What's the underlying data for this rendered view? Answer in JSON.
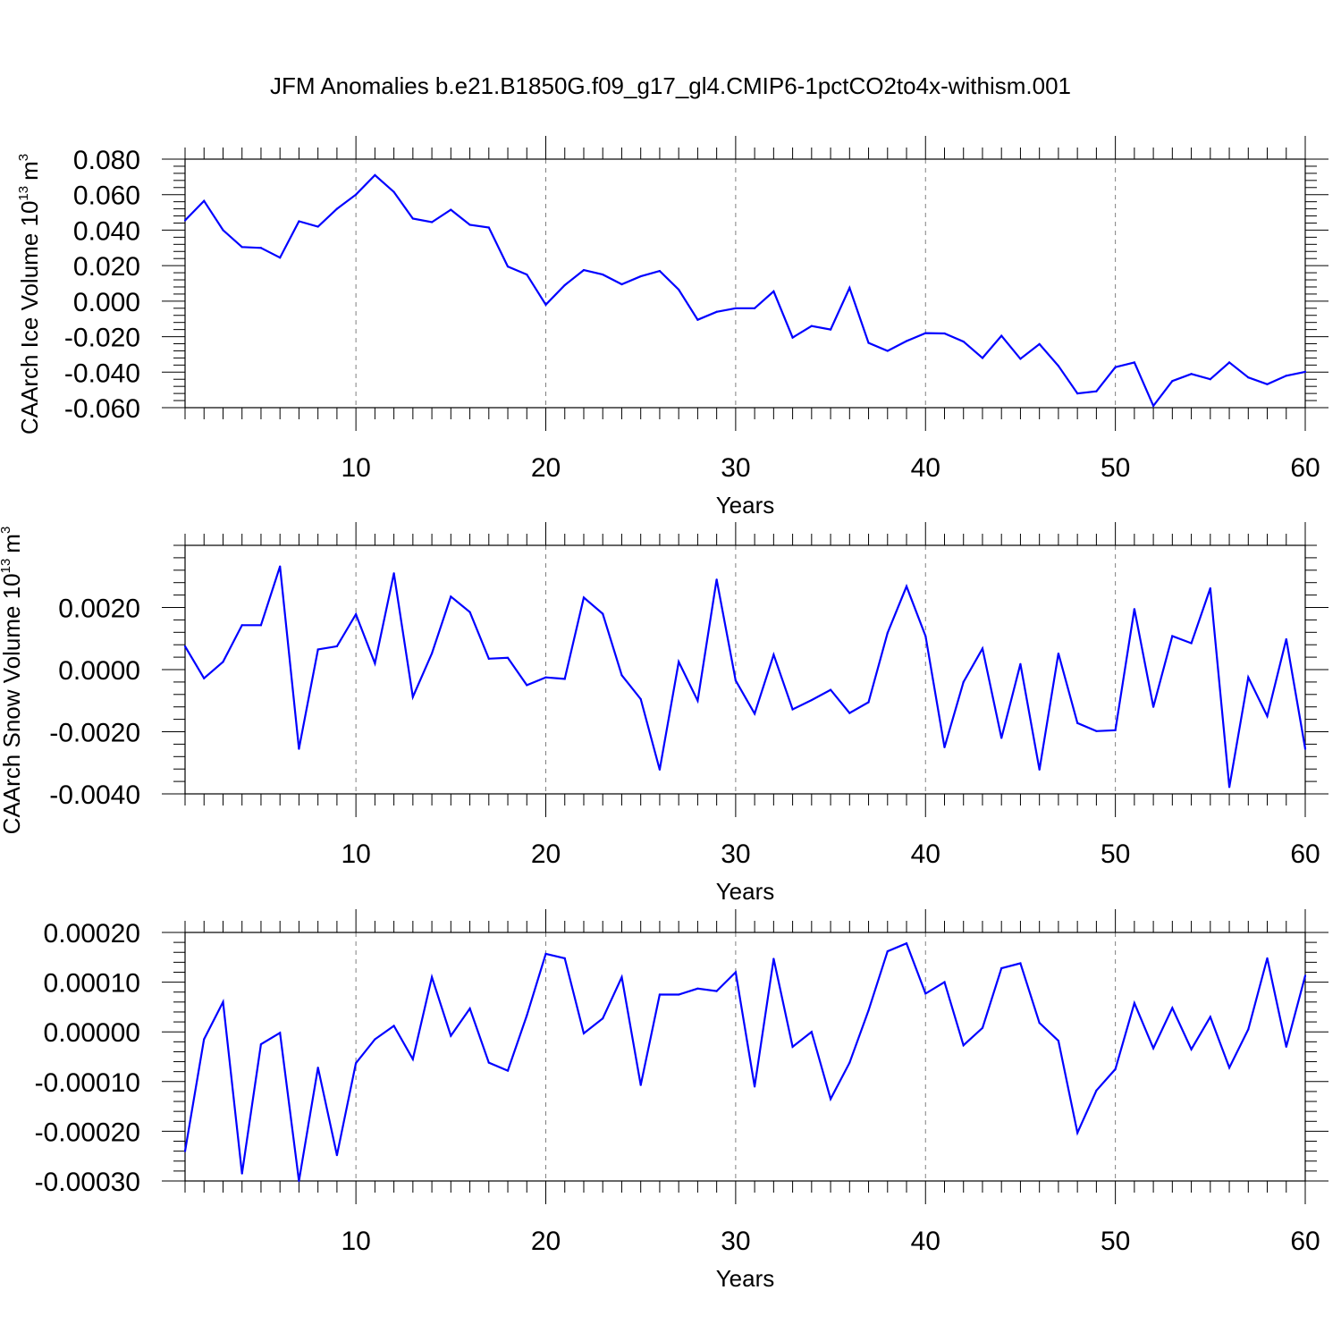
{
  "title": "JFM Anomalies b.e21.B1850G.f09_g17_gl4.CMIP6-1pctCO2to4x-withism.001",
  "colors": {
    "line": "#0000ff",
    "axis": "#000000",
    "grid": "#808080"
  },
  "chart_data": [
    {
      "type": "line",
      "ylabel": "CAArch Ice Volume 10",
      "ylabel_exp": "13",
      "ylabel_unit": "m",
      "ylabel_unit_exp": "3",
      "xlabel": "Years",
      "xlim": [
        1,
        60
      ],
      "ylim": [
        -0.06,
        0.08
      ],
      "xticks": [
        10,
        20,
        30,
        40,
        50,
        60
      ],
      "xtick_labels": [
        "10",
        "20",
        "30",
        "40",
        "50",
        "60"
      ],
      "yticks": [
        -0.06,
        -0.04,
        -0.02,
        0.0,
        0.02,
        0.04,
        0.06,
        0.08
      ],
      "ytick_labels": [
        "-0.060",
        "-0.040",
        "-0.020",
        "0.000",
        "0.020",
        "0.040",
        "0.060",
        "0.080"
      ],
      "x": [
        1,
        2,
        3,
        4,
        5,
        6,
        7,
        8,
        9,
        10,
        11,
        12,
        13,
        14,
        15,
        16,
        17,
        18,
        19,
        20,
        21,
        22,
        23,
        24,
        25,
        26,
        27,
        28,
        29,
        30,
        31,
        32,
        33,
        34,
        35,
        36,
        37,
        38,
        39,
        40,
        41,
        42,
        43,
        44,
        45,
        46,
        47,
        48,
        49,
        50,
        51,
        52,
        53,
        54,
        55,
        56,
        57,
        58,
        59,
        60
      ],
      "values": [
        0.0455,
        0.0565,
        0.04,
        0.0305,
        0.03,
        0.0245,
        0.045,
        0.042,
        0.052,
        0.06,
        0.071,
        0.0615,
        0.0465,
        0.0445,
        0.0515,
        0.043,
        0.0415,
        0.0195,
        0.015,
        -0.002,
        0.009,
        0.0175,
        0.015,
        0.0095,
        0.014,
        0.017,
        0.0065,
        -0.0105,
        -0.006,
        -0.004,
        -0.004,
        0.0055,
        -0.0205,
        -0.014,
        -0.016,
        0.0075,
        -0.0235,
        -0.028,
        -0.0225,
        -0.018,
        -0.0182,
        -0.0228,
        -0.032,
        -0.0195,
        -0.0325,
        -0.0242,
        -0.0365,
        -0.052,
        -0.0508,
        -0.0372,
        -0.0345,
        -0.059,
        -0.045,
        -0.041,
        -0.044,
        -0.0345,
        -0.043,
        -0.0468,
        -0.042,
        -0.0398
      ]
    },
    {
      "type": "line",
      "ylabel": "CAArch Snow Volume 10",
      "ylabel_exp": "13",
      "ylabel_unit": "m",
      "ylabel_unit_exp": "3",
      "xlabel": "Years",
      "xlim": [
        1,
        60
      ],
      "ylim": [
        -0.004,
        0.004
      ],
      "xticks": [
        10,
        20,
        30,
        40,
        50,
        60
      ],
      "xtick_labels": [
        "10",
        "20",
        "30",
        "40",
        "50",
        "60"
      ],
      "yticks": [
        -0.004,
        -0.002,
        0.0,
        0.002
      ],
      "ytick_labels": [
        "-0.0040",
        "-0.0020",
        "0.0000",
        "0.0020"
      ],
      "x": [
        1,
        2,
        3,
        4,
        5,
        6,
        7,
        8,
        9,
        10,
        11,
        12,
        13,
        14,
        15,
        16,
        17,
        18,
        19,
        20,
        21,
        22,
        23,
        24,
        25,
        26,
        27,
        28,
        29,
        30,
        31,
        32,
        33,
        34,
        35,
        36,
        37,
        38,
        39,
        40,
        41,
        42,
        43,
        44,
        45,
        46,
        47,
        48,
        49,
        50,
        51,
        52,
        53,
        54,
        55,
        56,
        57,
        58,
        59,
        60
      ],
      "values": [
        0.00075,
        -0.00028,
        0.00025,
        0.00143,
        0.00143,
        0.00332,
        -0.00255,
        0.00065,
        0.00075,
        0.00178,
        0.0002,
        0.0031,
        -0.00088,
        0.00052,
        0.00235,
        0.00185,
        0.00035,
        0.00038,
        -0.0005,
        -0.00025,
        -0.0003,
        0.00232,
        0.0018,
        -0.00018,
        -0.00095,
        -0.00322,
        0.00025,
        -0.001,
        0.0029,
        -0.00035,
        -0.00142,
        0.00048,
        -0.00128,
        -0.00098,
        -0.00065,
        -0.0014,
        -0.00105,
        0.00118,
        0.00268,
        0.00108,
        -0.0025,
        -0.0004,
        0.00068,
        -0.0022,
        0.00018,
        -0.00322,
        0.00052,
        -0.00172,
        -0.00198,
        -0.00195,
        0.00195,
        -0.0012,
        0.00108,
        0.00085,
        0.00262,
        -0.00378,
        -0.00025,
        -0.0015,
        0.00098,
        -0.00255
      ]
    },
    {
      "type": "line",
      "xlabel": "Years",
      "xlim": [
        1,
        60
      ],
      "ylim": [
        -0.0003,
        0.0002
      ],
      "xticks": [
        10,
        20,
        30,
        40,
        50,
        60
      ],
      "xtick_labels": [
        "10",
        "20",
        "30",
        "40",
        "50",
        "60"
      ],
      "yticks": [
        -0.0003,
        -0.0002,
        -0.0001,
        0.0,
        0.0001,
        0.0002
      ],
      "ytick_labels": [
        "-0.00030",
        "-0.00020",
        "-0.00010",
        "0.00000",
        "0.00010",
        "0.00020"
      ],
      "x": [
        1,
        2,
        3,
        4,
        5,
        6,
        7,
        8,
        9,
        10,
        11,
        12,
        13,
        14,
        15,
        16,
        17,
        18,
        19,
        20,
        21,
        22,
        23,
        24,
        25,
        26,
        27,
        28,
        29,
        30,
        31,
        32,
        33,
        34,
        35,
        36,
        37,
        38,
        39,
        40,
        41,
        42,
        43,
        44,
        45,
        46,
        47,
        48,
        49,
        50,
        51,
        52,
        53,
        54,
        55,
        56,
        57,
        58,
        59,
        60
      ],
      "values": [
        -0.00024,
        -1.5e-05,
        6e-05,
        -0.000285,
        -2.5e-05,
        -2e-06,
        -0.0003,
        -7.2e-05,
        -0.000248,
        -6.3e-05,
        -1.5e-05,
        1.2e-05,
        -5.5e-05,
        0.00011,
        -8e-06,
        4.7e-05,
        -6.2e-05,
        -7.8e-05,
        3.3e-05,
        0.000157,
        0.000148,
        -3e-06,
        2.7e-05,
        0.00011,
        -0.000107,
        7.5e-05,
        7.5e-05,
        8.7e-05,
        8.2e-05,
        0.00012,
        -0.00011,
        0.000147,
        -3e-05,
        0.0,
        -0.000135,
        -6.2e-05,
        4.3e-05,
        0.000162,
        0.000178,
        7.7e-05,
        0.0001,
        -2.7e-05,
        8e-06,
        0.000128,
        0.000138,
        1.8e-05,
        -1.8e-05,
        -0.000203,
        -0.000118,
        -7.5e-05,
        5.8e-05,
        -3.3e-05,
        4.8e-05,
        -3.5e-05,
        3e-05,
        -7.2e-05,
        5e-06,
        0.000148,
        -3e-05,
        0.000113
      ]
    }
  ]
}
